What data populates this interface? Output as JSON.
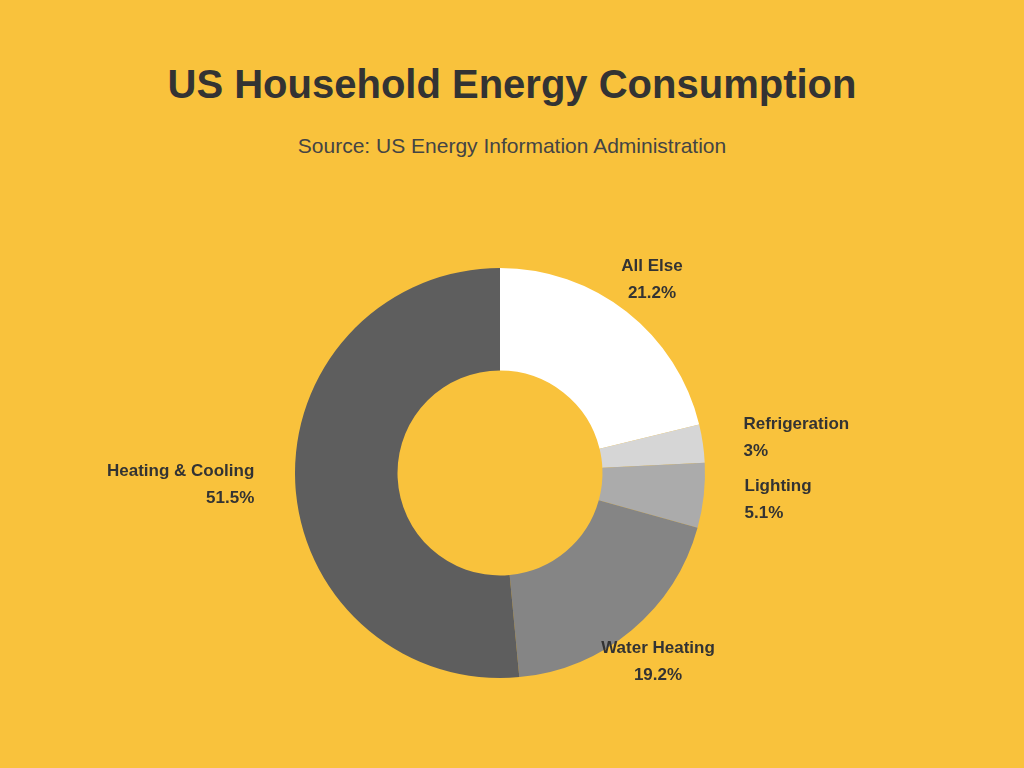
{
  "chart_data": {
    "type": "doughnut",
    "title": "US Household Energy Consumption",
    "subtitle": "Source: US Energy Information Administration",
    "categories": [
      "All Else",
      "Refrigeration",
      "Lighting",
      "Water Heating",
      "Heating & Cooling"
    ],
    "values": [
      21.2,
      3,
      5.1,
      19.2,
      51.5
    ],
    "value_labels": [
      "21.2%",
      "3%",
      "5.1%",
      "19.2%",
      "51.5%"
    ],
    "colors": [
      "#ffffff",
      "#d6d6d6",
      "#ababab",
      "#858585",
      "#5e5e5e"
    ],
    "data_labels": true
  }
}
